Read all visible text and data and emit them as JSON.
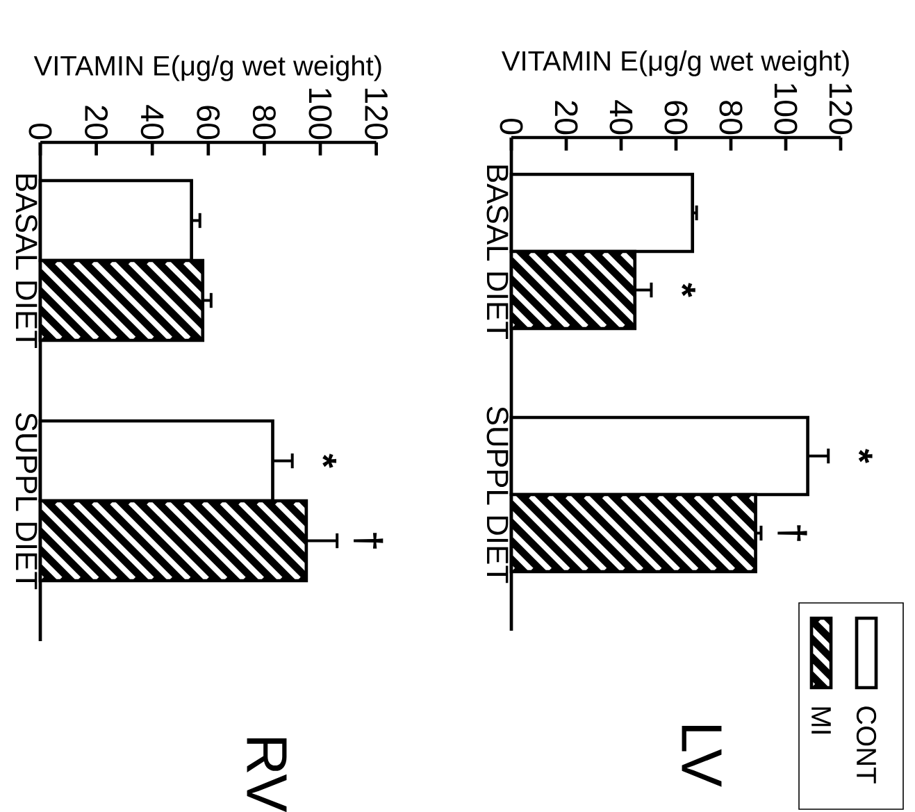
{
  "chart_data": [
    {
      "type": "bar",
      "orientation": "horizontal",
      "title": "LV",
      "xlabel": "VITAMIN E(μg/g wet weight)",
      "categories": [
        "BASAL DIET",
        "SUPPL DIET"
      ],
      "series": [
        {
          "name": "CONT",
          "color": "#ffffff",
          "values": [
            66,
            108
          ],
          "errors": [
            1.5,
            7.5
          ]
        },
        {
          "name": "MI",
          "color": "#000000",
          "values": [
            45,
            89
          ],
          "errors": [
            6,
            2
          ]
        }
      ],
      "xlim": [
        0,
        120
      ],
      "xticks": [
        0,
        20,
        40,
        60,
        80,
        100,
        120
      ],
      "legend": "bottom right",
      "annotations": [
        {
          "text": "*",
          "x": 45,
          "y": "BASAL DIET"
        },
        {
          "text": "*",
          "x": 108,
          "y": "SUPPL DIET"
        },
        {
          "text": "†",
          "x": 89,
          "y": "SUPPL DIET"
        }
      ]
    },
    {
      "type": "bar",
      "orientation": "horizontal",
      "title": "RV",
      "xlabel": "VITAMIN E(μg/g wet weight)",
      "categories": [
        "BASAL DIET",
        "SUPPL DIET"
      ],
      "series": [
        {
          "color": "#ffffff",
          "values": [
            54,
            83
          ],
          "errors": [
            3,
            7
          ]
        },
        {
          "color": "#000000",
          "values": [
            58,
            95
          ],
          "errors": [
            3,
            11
          ]
        }
      ],
      "xlim": [
        0,
        120
      ],
      "xticks": [
        0,
        20,
        40,
        60,
        80,
        100,
        120
      ],
      "annotations": [
        {
          "text": "*",
          "x": 83,
          "y": "SUPPL DIET"
        },
        {
          "text": "†",
          "x": 95,
          "y": "SUPPL DIET"
        }
      ]
    }
  ]
}
